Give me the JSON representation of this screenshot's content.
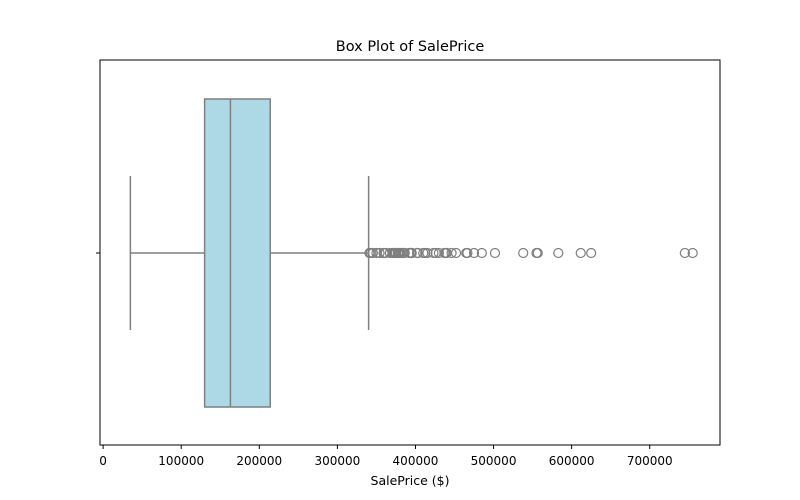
{
  "chart_data": {
    "type": "box",
    "orientation": "horizontal",
    "title": "Box Plot of SalePrice",
    "xlabel": "SalePrice ($)",
    "ylabel": "",
    "xlim": [
      -4000,
      790000
    ],
    "xticks": [
      0,
      100000,
      200000,
      300000,
      400000,
      500000,
      600000,
      700000
    ],
    "xtick_labels": [
      "0",
      "100000",
      "200000",
      "300000",
      "400000",
      "500000",
      "600000",
      "700000"
    ],
    "grid": false,
    "colors": {
      "box_fill": "#add8e6",
      "box_edge": "#7f7f7f",
      "axes_edge": "#000000"
    },
    "box": {
      "whisker_low": 34900,
      "q1": 129975,
      "median": 163000,
      "q3": 214000,
      "whisker_high": 340000
    },
    "outliers": [
      341000,
      342643,
      345000,
      345474,
      350000,
      354000,
      359100,
      360000,
      361919,
      367294,
      370878,
      372402,
      372500,
      374000,
      375000,
      377426,
      377500,
      378500,
      380000,
      381000,
      383970,
      385000,
      386250,
      392000,
      392500,
      394432,
      394617,
      395000,
      395192,
      402000,
      402861,
      403000,
      410000,
      412500,
      415298,
      423000,
      426000,
      430000,
      437154,
      438780,
      440000,
      446261,
      451950,
      465000,
      466500,
      475000,
      485000,
      501837,
      538000,
      555000,
      556581,
      582933,
      611657,
      625000,
      745000,
      755000
    ]
  }
}
